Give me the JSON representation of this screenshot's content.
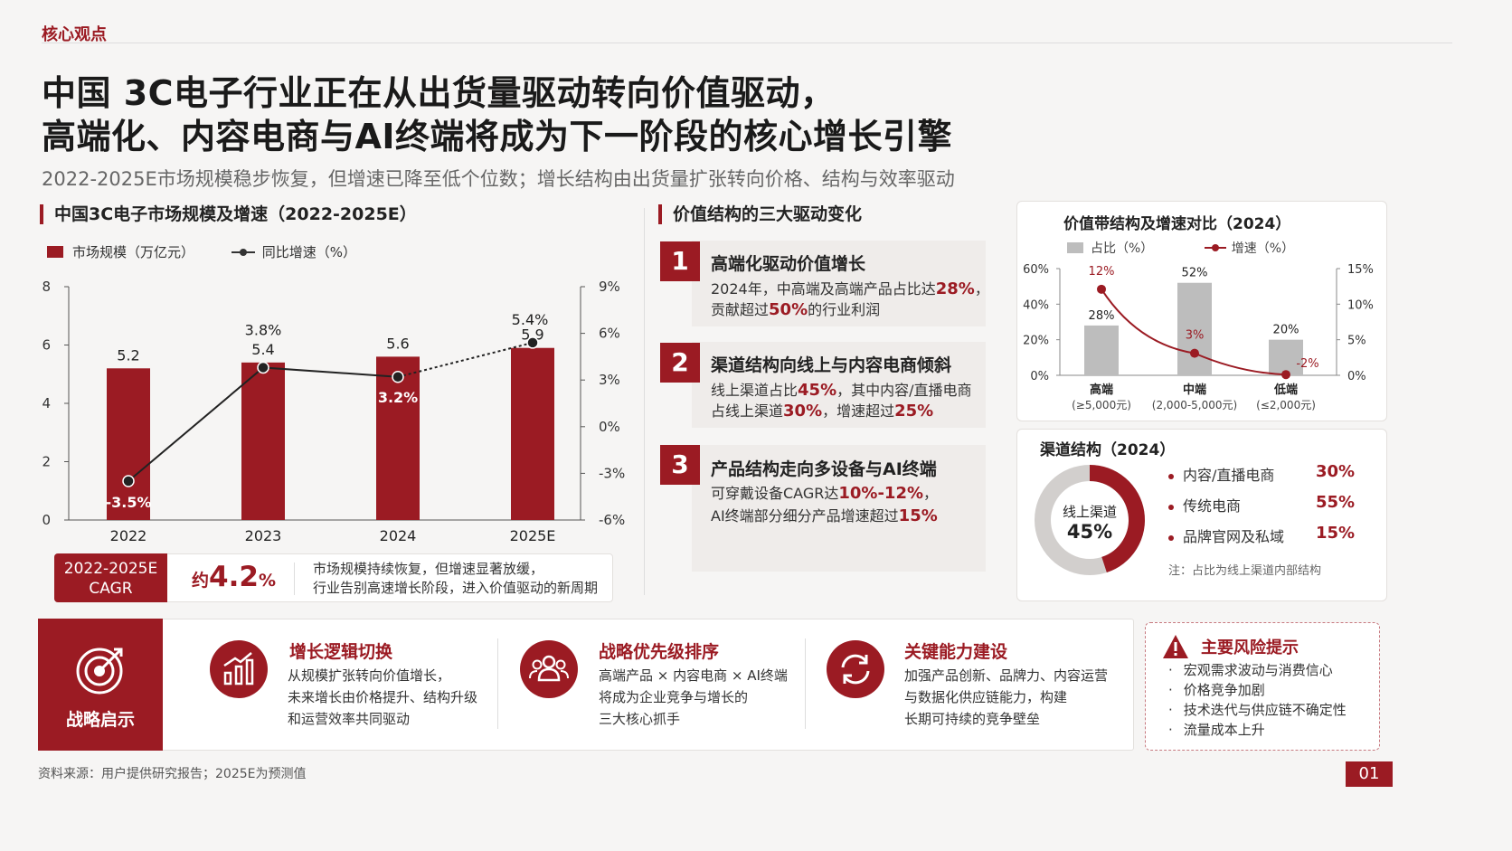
{
  "header": {
    "kicker": "核心观点",
    "title_line1": "中国 3C电子行业正在从出货量驱动转向价值驱动，",
    "title_line2": "高端化、内容电商与AI终端将成为下一阶段的核心增长引擎",
    "subtitle": "2022-2025E市场规模稳步恢复，但增速已降至低个位数；增长结构由出货量扩张转向价格、结构与效率驱动"
  },
  "market_chart": {
    "heading": "中国3C电子市场规模及增速（2022-2025E）",
    "legend_bar": "市场规模（万亿元）",
    "legend_line": "同比增速（%）"
  },
  "cagr": {
    "label_line1": "2022-2025E",
    "label_line2": "CAGR",
    "prefix": "约",
    "value": "4.2",
    "unit": "%",
    "note_line1": "市场规模持续恢复，但增速显著放缓，",
    "note_line2": "行业告别高速增长阶段，进入价值驱动的新周期"
  },
  "drivers": {
    "heading": "价值结构的三大驱动变化",
    "items": [
      {
        "num": "1",
        "title": "高端化驱动价值增长",
        "l1a": "2024年，中高端及高端产品占比达",
        "l1b": "28%",
        "l1c": "，",
        "l2a": "贡献超过",
        "l2b": "50%",
        "l2c": "的行业利润"
      },
      {
        "num": "2",
        "title": "渠道结构向线上与内容电商倾斜",
        "l1a": "线上渠道占比",
        "l1b": "45%",
        "l1c": "，其中内容/直播电商",
        "l2a": "占线上渠道",
        "l2b": "30%",
        "l2c": "，增速超过",
        "l2d": "25%"
      },
      {
        "num": "3",
        "title": "产品结构走向多设备与AI终端",
        "l1a": "可穿戴设备CAGR达",
        "l1b": "10%-12%",
        "l1c": "，",
        "l2a": "AI终端部分细分产品增速超过",
        "l2b": "15%",
        "l2c": ""
      }
    ]
  },
  "price_band": {
    "heading": "价值带结构及增速对比（2024）",
    "legend_bar": "占比（%）",
    "legend_line": "增速（%）",
    "cats": [
      {
        "name": "高端",
        "range": "(≥5,000元)"
      },
      {
        "name": "中端",
        "range": "(2,000-5,000元)"
      },
      {
        "name": "低端",
        "range": "(≤2,000元)"
      }
    ]
  },
  "channel": {
    "heading": "渠道结构（2024）",
    "donut_label": "线上渠道",
    "donut_value": "45%",
    "donut_fraction": 0.45,
    "items": [
      {
        "label": "内容/直播电商",
        "pct": "30%"
      },
      {
        "label": "传统电商",
        "pct": "55%"
      },
      {
        "label": "品牌官网及私域",
        "pct": "15%"
      }
    ],
    "note": "注：占比为线上渠道内部结构"
  },
  "insights": {
    "badge": "战略启示",
    "items": [
      {
        "title": "增长逻辑切换",
        "lines": [
          "从规模扩张转向价值增长，",
          "未来增长由价格提升、结构升级",
          "和运营效率共同驱动"
        ]
      },
      {
        "title": "战略优先级排序",
        "lines": [
          "高端产品 × 内容电商 × AI终端",
          "将成为企业竞争与增长的",
          "三大核心抓手"
        ]
      },
      {
        "title": "关键能力建设",
        "lines": [
          "加强产品创新、品牌力、内容运营",
          "与数据化供应链能力，构建",
          "长期可持续的竞争壁垒"
        ]
      }
    ]
  },
  "risks": {
    "title": "主要风险提示",
    "items": [
      "宏观需求波动与消费信心",
      "价格竞争加剧",
      "技术迭代与供应链不确定性",
      "流量成本上升"
    ]
  },
  "footer": {
    "source": "资料来源：用户提供研究报告；2025E为预测值",
    "page": "01"
  },
  "colors": {
    "accent": "#9b1b23",
    "gray_bar": "#bdbdbd",
    "muted_ring": "#d2cfcd"
  },
  "chart_data": [
    {
      "type": "bar",
      "title": "中国3C电子市场规模及增速（2022-2025E）",
      "categories": [
        "2022",
        "2023",
        "2024",
        "2025E"
      ],
      "series": [
        {
          "name": "市场规模（万亿元）",
          "kind": "bar",
          "axis": "left",
          "values": [
            5.2,
            5.4,
            5.6,
            5.9
          ],
          "labels": [
            "5.2",
            "5.4",
            "5.6",
            "5.9"
          ]
        },
        {
          "name": "同比增速（%）",
          "kind": "line",
          "axis": "right",
          "values": [
            -3.5,
            3.8,
            3.2,
            5.4
          ],
          "labels": [
            "-3.5%",
            "3.8%",
            "3.2%",
            "5.4%"
          ],
          "dashed_from_index": 2
        }
      ],
      "ylim_left": [
        0,
        8
      ],
      "yticks_left": [
        "0",
        "2",
        "4",
        "6",
        "8"
      ],
      "ylim_right": [
        -6,
        9
      ],
      "yticks_right": [
        "-6%",
        "-3%",
        "0%",
        "3%",
        "6%",
        "9%"
      ],
      "grid": false,
      "legend": "top-left"
    },
    {
      "type": "bar",
      "title": "价值带结构及增速对比（2024）",
      "categories": [
        "高端",
        "中端",
        "低端"
      ],
      "series": [
        {
          "name": "占比（%）",
          "kind": "bar",
          "axis": "left",
          "values": [
            28,
            52,
            20
          ],
          "labels": [
            "28%",
            "52%",
            "20%"
          ]
        },
        {
          "name": "增速（%）",
          "kind": "line",
          "axis": "right",
          "values": [
            12,
            3,
            -2
          ],
          "labels": [
            "12%",
            "3%",
            "-2%"
          ]
        }
      ],
      "ylim_left": [
        0,
        60
      ],
      "yticks_left": [
        "0%",
        "20%",
        "40%",
        "60%"
      ],
      "ylim_right": [
        0,
        15
      ],
      "yticks_right": [
        "0%",
        "5%",
        "10%",
        "15%"
      ],
      "grid": false,
      "legend": "top"
    }
  ]
}
